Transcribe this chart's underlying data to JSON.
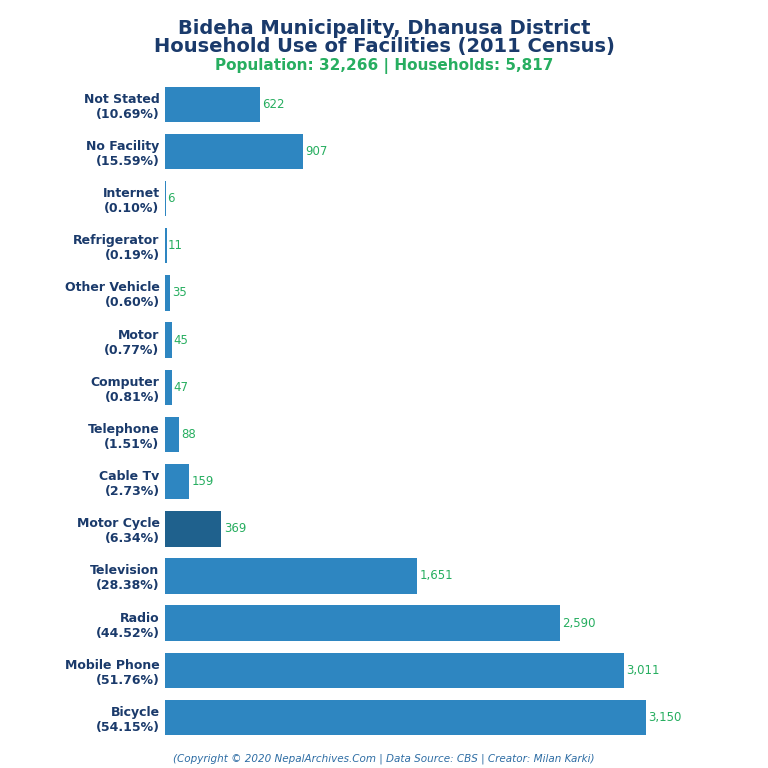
{
  "title_line1": "Bideha Municipality, Dhanusa District",
  "title_line2": "Household Use of Facilities (2011 Census)",
  "subtitle": "Population: 32,266 | Households: 5,817",
  "footer": "(Copyright © 2020 NepalArchives.Com | Data Source: CBS | Creator: Milan Karki)",
  "categories": [
    "Not Stated\n(10.69%)",
    "No Facility\n(15.59%)",
    "Internet\n(0.10%)",
    "Refrigerator\n(0.19%)",
    "Other Vehicle\n(0.60%)",
    "Motor\n(0.77%)",
    "Computer\n(0.81%)",
    "Telephone\n(1.51%)",
    "Cable Tv\n(2.73%)",
    "Motor Cycle\n(6.34%)",
    "Television\n(28.38%)",
    "Radio\n(44.52%)",
    "Mobile Phone\n(51.76%)",
    "Bicycle\n(54.15%)"
  ],
  "values": [
    622,
    907,
    6,
    11,
    35,
    45,
    47,
    88,
    159,
    369,
    1651,
    2590,
    3011,
    3150
  ],
  "bar_colors": [
    "#2e86c1",
    "#2e86c1",
    "#2e86c1",
    "#2e86c1",
    "#2e86c1",
    "#2e86c1",
    "#2e86c1",
    "#2e86c1",
    "#2e86c1",
    "#1f618d",
    "#2e86c1",
    "#2e86c1",
    "#2e86c1",
    "#2e86c1"
  ],
  "title_color": "#1a3a6b",
  "subtitle_color": "#27ae60",
  "value_color": "#27ae60",
  "footer_color": "#2e6da4",
  "background_color": "#ffffff",
  "xlim": [
    0,
    3500
  ],
  "title_fontsize": 14,
  "subtitle_fontsize": 11,
  "label_fontsize": 9,
  "value_fontsize": 8.5,
  "footer_fontsize": 7.5
}
